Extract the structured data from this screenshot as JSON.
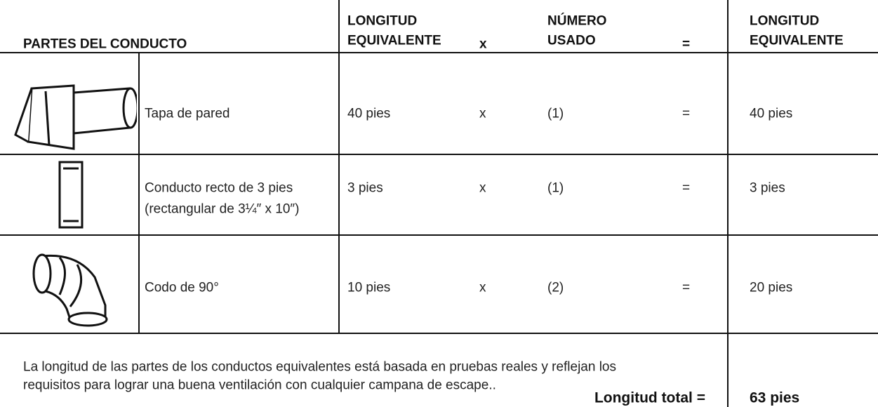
{
  "header": {
    "columns": [
      [
        "PARTES DEL CONDUCTO"
      ],
      [
        "LONGITUD",
        "EQUIVALENTE"
      ],
      [
        "x"
      ],
      [
        "NÚMERO",
        "USADO"
      ],
      [
        "="
      ],
      [
        "LONGITUD",
        "EQUIVALENTE"
      ]
    ]
  },
  "rows": [
    {
      "description": [
        "Tapa de pared"
      ],
      "length": "40 pies",
      "times": "x",
      "count": "(1)",
      "equals": "=",
      "total": "40 pies"
    },
    {
      "description": [
        "Conducto recto de 3 pies",
        "(rectangular de 3¼″ x 10″)"
      ],
      "length": "3 pies",
      "times": "x",
      "count": "(1)",
      "equals": "=",
      "total": "3 pies"
    },
    {
      "description": [
        "Codo de 90°"
      ],
      "length": "10 pies",
      "times": "x",
      "count": "(2)",
      "equals": "=",
      "total": "20 pies"
    }
  ],
  "footer": {
    "note": [
      "La longitud de las partes de los conductos equivalentes está basada en pruebas reales y reflejan los",
      "requisitos para lograr una buena ventilación con cualquier campana de escape.."
    ],
    "total_label": "Longitud total =",
    "total_value": "63 pies"
  }
}
